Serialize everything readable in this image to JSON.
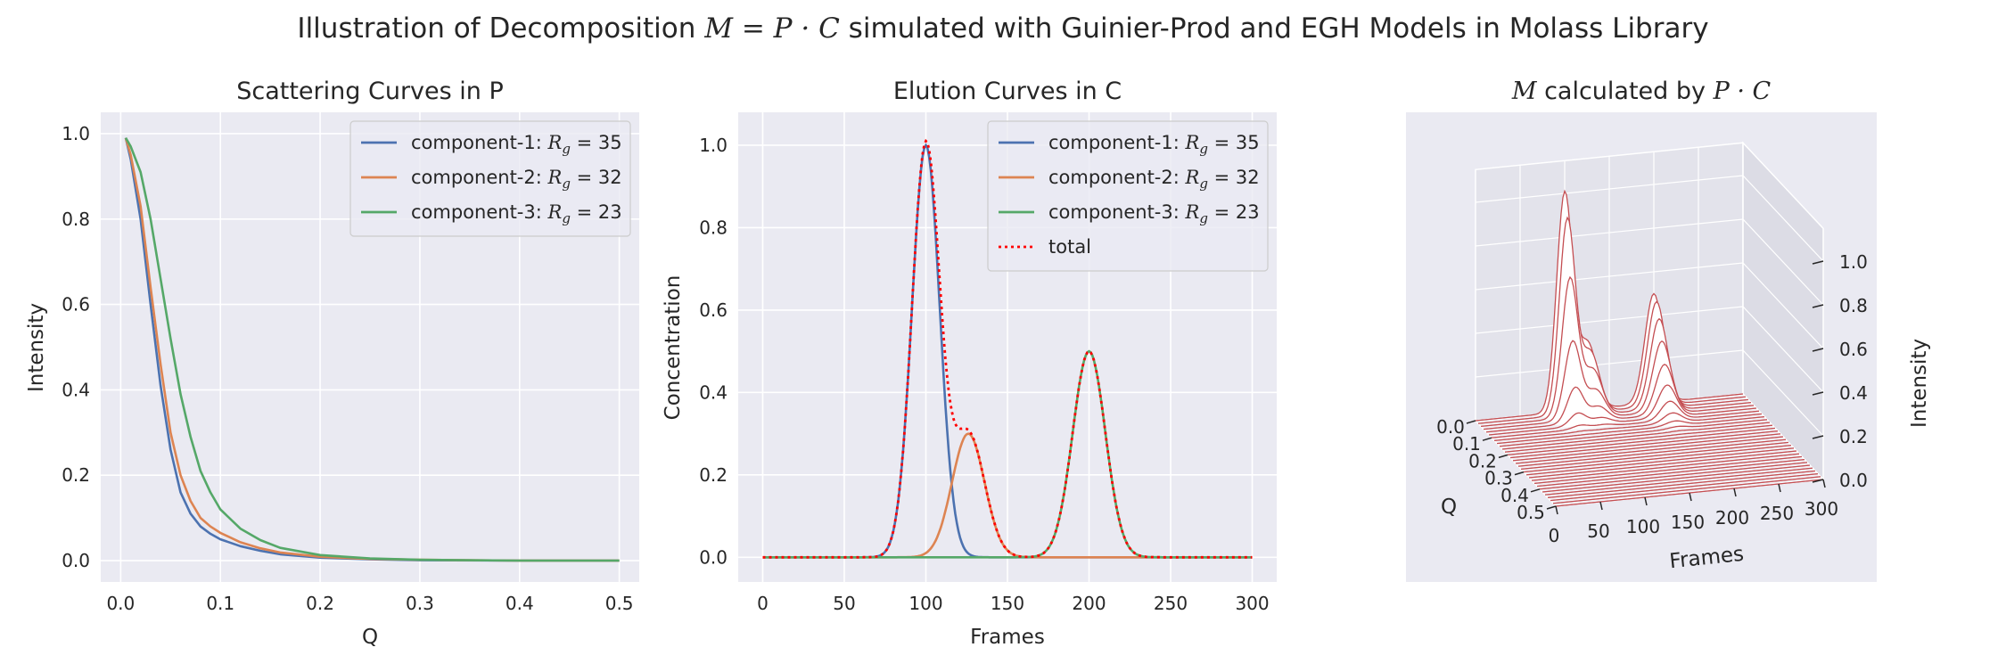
{
  "suptitle": {
    "prefix": "Illustration of Decomposition ",
    "math": "M = P · C",
    "suffix": " simulated with Guinier-Prod and EGH Models in Molass Library"
  },
  "colors": {
    "axes_bg": "#EAEAF2",
    "grid": "#FFFFFF",
    "component_1": "#4C72B0",
    "component_2": "#DD8452",
    "component_3": "#55A868",
    "total": "#FF0000",
    "surface": "#C44E52"
  },
  "chart_data": [
    {
      "type": "line",
      "title": "Scattering Curves in P",
      "xlabel": "Q",
      "ylabel": "Intensity",
      "xlim": [
        -0.02,
        0.52
      ],
      "ylim": [
        -0.05,
        1.05
      ],
      "xticks": [
        0.0,
        0.1,
        0.2,
        0.3,
        0.4,
        0.5
      ],
      "xtick_labels": [
        "0.0",
        "0.1",
        "0.2",
        "0.3",
        "0.4",
        "0.5"
      ],
      "yticks": [
        0.0,
        0.2,
        0.4,
        0.6,
        0.8,
        1.0
      ],
      "ytick_labels": [
        "0.0",
        "0.2",
        "0.4",
        "0.6",
        "0.8",
        "1.0"
      ],
      "x": [
        0.005,
        0.01,
        0.02,
        0.03,
        0.04,
        0.05,
        0.06,
        0.07,
        0.08,
        0.09,
        0.1,
        0.12,
        0.14,
        0.16,
        0.2,
        0.25,
        0.3,
        0.4,
        0.5
      ],
      "series": [
        {
          "name": "component-1: ",
          "rg_label": "R",
          "rg_sub": "g",
          "rg_value": " = 35",
          "color": "#4C72B0",
          "dash": "",
          "values": [
            0.99,
            0.94,
            0.8,
            0.6,
            0.41,
            0.26,
            0.16,
            0.11,
            0.08,
            0.063,
            0.05,
            0.034,
            0.023,
            0.015,
            0.007,
            0.003,
            0.001,
            0.0,
            0.0
          ]
        },
        {
          "name": "component-2: ",
          "rg_label": "R",
          "rg_sub": "g",
          "rg_value": " = 32",
          "color": "#DD8452",
          "dash": "",
          "values": [
            0.99,
            0.95,
            0.83,
            0.64,
            0.46,
            0.3,
            0.2,
            0.14,
            0.1,
            0.08,
            0.065,
            0.043,
            0.029,
            0.019,
            0.009,
            0.004,
            0.002,
            0.0,
            0.0
          ]
        },
        {
          "name": "component-3: ",
          "rg_label": "R",
          "rg_sub": "g",
          "rg_value": " = 23",
          "color": "#55A868",
          "dash": "",
          "values": [
            0.99,
            0.97,
            0.91,
            0.8,
            0.66,
            0.52,
            0.39,
            0.29,
            0.21,
            0.16,
            0.12,
            0.075,
            0.048,
            0.03,
            0.013,
            0.005,
            0.002,
            0.0,
            0.0
          ]
        }
      ],
      "legend": "upper right",
      "grid": true
    },
    {
      "type": "line",
      "title": "Elution Curves in C",
      "xlabel": "Frames",
      "ylabel": "Concentration",
      "xlim": [
        -15,
        315
      ],
      "ylim": [
        -0.06,
        1.08
      ],
      "xticks": [
        0,
        50,
        100,
        150,
        200,
        250,
        300
      ],
      "xtick_labels": [
        "0",
        "50",
        "100",
        "150",
        "200",
        "250",
        "300"
      ],
      "yticks": [
        0.0,
        0.2,
        0.4,
        0.6,
        0.8,
        1.0
      ],
      "ytick_labels": [
        "0.0",
        "0.2",
        "0.4",
        "0.6",
        "0.8",
        "1.0"
      ],
      "peaks": [
        {
          "name": "component-1: ",
          "rg_label": "R",
          "rg_sub": "g",
          "rg_value": " = 35",
          "color": "#4C72B0",
          "dash": "",
          "height": 1.0,
          "center": 100,
          "sigma": 8.5
        },
        {
          "name": "component-2: ",
          "rg_label": "R",
          "rg_sub": "g",
          "rg_value": " = 32",
          "color": "#DD8452",
          "dash": "",
          "height": 0.3,
          "center": 126,
          "sigma": 10
        },
        {
          "name": "component-3: ",
          "rg_label": "R",
          "rg_sub": "g",
          "rg_value": " = 23",
          "color": "#55A868",
          "dash": "",
          "height": 0.5,
          "center": 200,
          "sigma": 10
        }
      ],
      "total": {
        "name": "total",
        "color": "#FF0000",
        "dash": "3,4"
      },
      "x_range": [
        0,
        300
      ],
      "legend": "upper right",
      "grid": true
    },
    {
      "type": "surface3d",
      "title_math_M": "M",
      "title_middle": " calculated by ",
      "title_math_PC": "P · C",
      "xlabel": "Q",
      "ylabel": "Frames",
      "zlabel": "Intensity",
      "q_tick_labels": [
        "0.0",
        "0.1",
        "0.2",
        "0.3",
        "0.4",
        "0.5"
      ],
      "frame_tick_labels": [
        "0",
        "50",
        "100",
        "150",
        "200",
        "250",
        "300"
      ],
      "z_tick_labels": [
        "0.0",
        "0.2",
        "0.4",
        "0.6",
        "0.8",
        "1.0"
      ],
      "color": "#C44E52"
    }
  ]
}
